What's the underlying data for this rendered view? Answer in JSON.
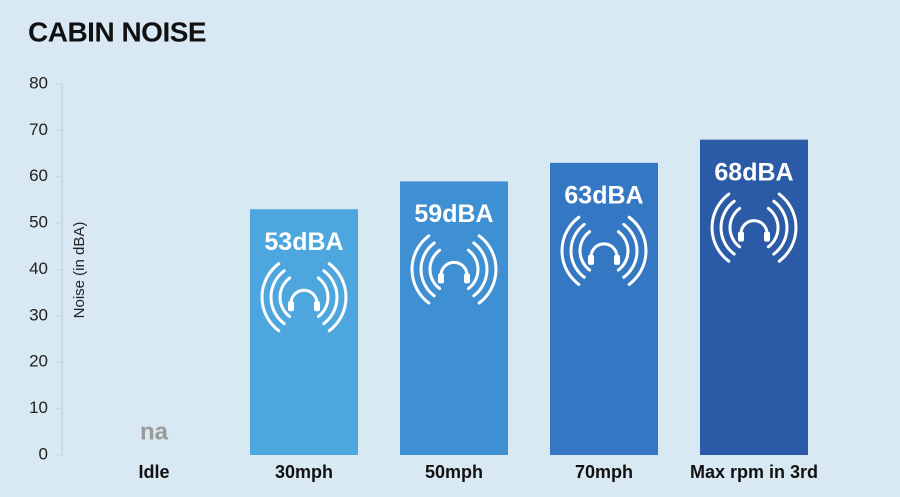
{
  "chart_data": {
    "type": "bar",
    "title": "CABIN NOISE",
    "y_label": "Noise (in dBA)",
    "categories": [
      "Idle",
      "30mph",
      "50mph",
      "70mph",
      "Max rpm in 3rd"
    ],
    "values": [
      null,
      53,
      59,
      63,
      68
    ],
    "value_labels": [
      "na",
      "53dBA",
      "59dBA",
      "63dBA",
      "68dBA"
    ],
    "colors": [
      "#9a9a9a",
      "#4da6de",
      "#3f8fd3",
      "#3477c2",
      "#2b5aa6"
    ],
    "ylim": [
      0,
      80
    ],
    "yticks": [
      0,
      10,
      20,
      30,
      40,
      50,
      60,
      70,
      80
    ],
    "grid": false
  }
}
